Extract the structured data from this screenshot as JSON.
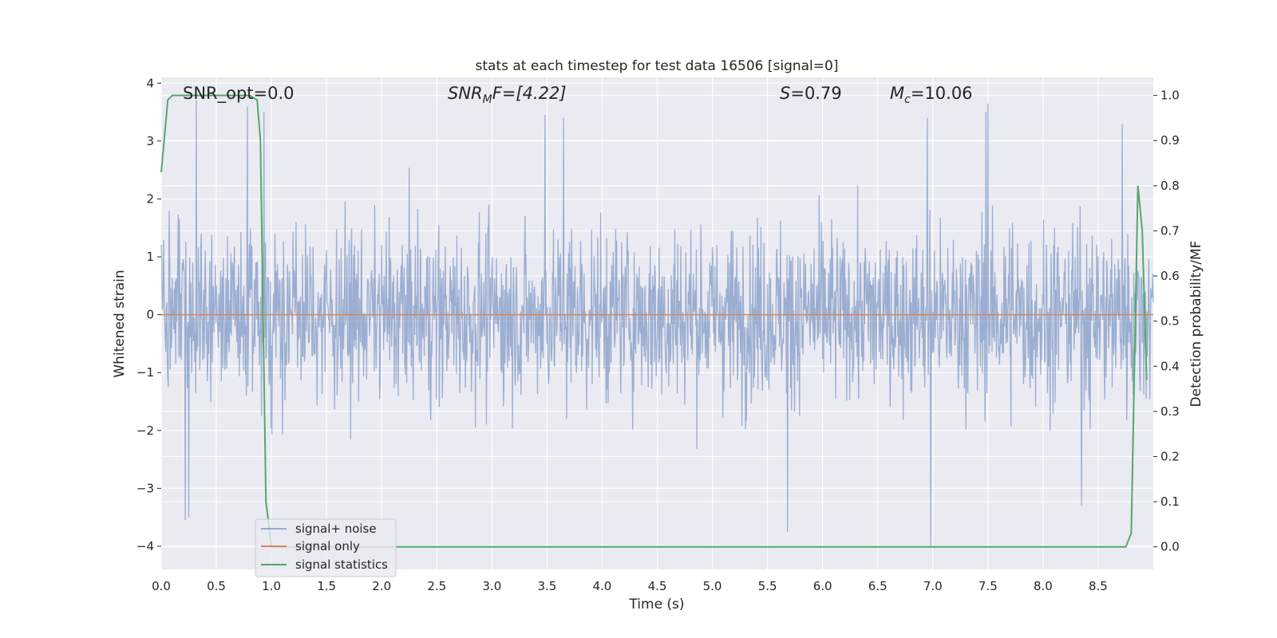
{
  "chart_data": {
    "type": "line",
    "title": "stats at each timestep for test data 16506 [signal=0]",
    "xlabel": "Time (s)",
    "ylabel_left": "Whitened strain",
    "ylabel_right": "Detection probability/MF",
    "xlim": [
      0.0,
      9.0
    ],
    "ylim_left": [
      -4.4,
      4.1
    ],
    "ylim_right": [
      -0.05,
      1.04
    ],
    "grid": true,
    "legend_placement": "lower-left",
    "x_ticks": [
      0.0,
      0.5,
      1.0,
      1.5,
      2.0,
      2.5,
      3.0,
      3.5,
      4.0,
      4.5,
      5.0,
      5.5,
      6.0,
      6.5,
      7.0,
      7.5,
      8.0,
      8.5
    ],
    "x_tick_labels": [
      "0.0",
      "0.5",
      "1.0",
      "1.5",
      "2.0",
      "2.5",
      "3.0",
      "3.5",
      "4.0",
      "4.5",
      "5.0",
      "5.5",
      "6.0",
      "6.5",
      "7.0",
      "7.5",
      "8.0",
      "8.5"
    ],
    "y_left_ticks": [
      4,
      3,
      2,
      1,
      0,
      -1,
      -2,
      -3,
      -4
    ],
    "y_left_tick_labels": [
      "4",
      "3",
      "2",
      "1",
      "0",
      "−1",
      "−2",
      "−3",
      "−4"
    ],
    "y_right_ticks": [
      1.0,
      0.9,
      0.8,
      0.7,
      0.6,
      0.5,
      0.4,
      0.3,
      0.2,
      0.1,
      0.0
    ],
    "y_right_tick_labels": [
      "1.0",
      "0.9",
      "0.8",
      "0.7",
      "0.6",
      "0.5",
      "0.4",
      "0.3",
      "0.2",
      "0.1",
      "0.0"
    ],
    "annotations": {
      "snr_opt": "SNR_opt=0.0",
      "snr_mf_main": "SNR",
      "snr_mf_sub": "M",
      "snr_mf_rest": "F=[4.22]",
      "s_main": "S",
      "s_rest": "=0.79",
      "mc_main": "M",
      "mc_sub": "c",
      "mc_rest": "=10.06"
    },
    "series": [
      {
        "name": "signal+ noise",
        "axis": "left",
        "kind": "noise",
        "color": "#4c72b0",
        "opacity": 0.5,
        "x_range": [
          0.0,
          9.0
        ],
        "sample_rate_hz": 220,
        "typical_range": [
          -2.3,
          2.6
        ],
        "peak_samples": [
          {
            "x": 0.22,
            "y": -3.55
          },
          {
            "x": 0.25,
            "y": -3.5
          },
          {
            "x": 0.32,
            "y": 3.7
          },
          {
            "x": 0.78,
            "y": 3.6
          },
          {
            "x": 0.93,
            "y": 3.5
          },
          {
            "x": 3.48,
            "y": 3.45
          },
          {
            "x": 3.65,
            "y": 3.4
          },
          {
            "x": 5.68,
            "y": -3.75
          },
          {
            "x": 6.95,
            "y": 3.4
          },
          {
            "x": 6.98,
            "y": -4.0
          },
          {
            "x": 7.48,
            "y": 3.5
          },
          {
            "x": 7.5,
            "y": 3.65
          },
          {
            "x": 8.35,
            "y": -3.3
          },
          {
            "x": 8.72,
            "y": 3.3
          }
        ]
      },
      {
        "name": "signal only",
        "axis": "left",
        "color": "#dd8452",
        "x": [
          0.0,
          9.0
        ],
        "y": [
          0.0,
          0.0
        ]
      },
      {
        "name": "signal statistics",
        "axis": "right",
        "color": "#55a868",
        "x": [
          0.0,
          0.06,
          0.1,
          0.2,
          0.4,
          0.6,
          0.8,
          0.87,
          0.9,
          0.95,
          1.0,
          1.5,
          2.0,
          3.0,
          4.0,
          5.0,
          6.0,
          7.0,
          7.5,
          8.0,
          8.5,
          8.75,
          8.8,
          8.86,
          8.9,
          8.94
        ],
        "y": [
          0.83,
          0.99,
          1.0,
          1.0,
          1.0,
          1.0,
          1.0,
          0.99,
          0.9,
          0.1,
          0.0,
          0.0,
          0.0,
          0.0,
          0.0,
          0.0,
          0.0,
          0.0,
          0.0,
          0.0,
          0.0,
          0.0,
          0.03,
          0.8,
          0.7,
          0.37
        ]
      }
    ]
  }
}
